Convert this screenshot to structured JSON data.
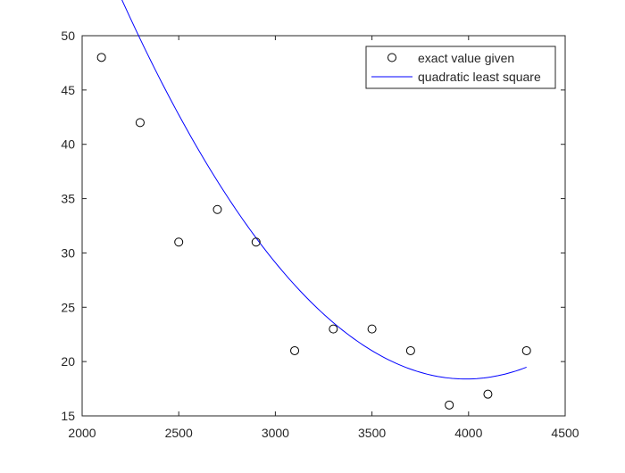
{
  "chart_data": {
    "type": "scatter",
    "title": "",
    "xlabel": "",
    "ylabel": "",
    "xlim": [
      2000,
      4500
    ],
    "ylim": [
      15,
      50
    ],
    "xticks": [
      2000,
      2500,
      3000,
      3500,
      4000,
      4500
    ],
    "yticks": [
      15,
      20,
      25,
      30,
      35,
      40,
      45,
      50
    ],
    "grid": false,
    "legend_position": "top-right",
    "colors": {
      "axis": "#262626",
      "markers": "#000000",
      "fit_line": "#0000ff"
    },
    "series": [
      {
        "name": "exact value given",
        "kind": "markers",
        "marker": "circle",
        "x": [
          2100,
          2300,
          2500,
          2700,
          2900,
          3100,
          3300,
          3500,
          3700,
          3900,
          4100,
          4300
        ],
        "y": [
          48,
          42,
          31,
          34,
          31,
          21,
          23,
          23,
          21,
          16,
          17,
          21
        ]
      },
      {
        "name": "quadratic least square",
        "kind": "line",
        "curve": "quadratic",
        "coefficients": [
          193.36,
          -0.08778,
          1.101e-05
        ],
        "x_range": [
          2100,
          4300
        ]
      }
    ]
  }
}
